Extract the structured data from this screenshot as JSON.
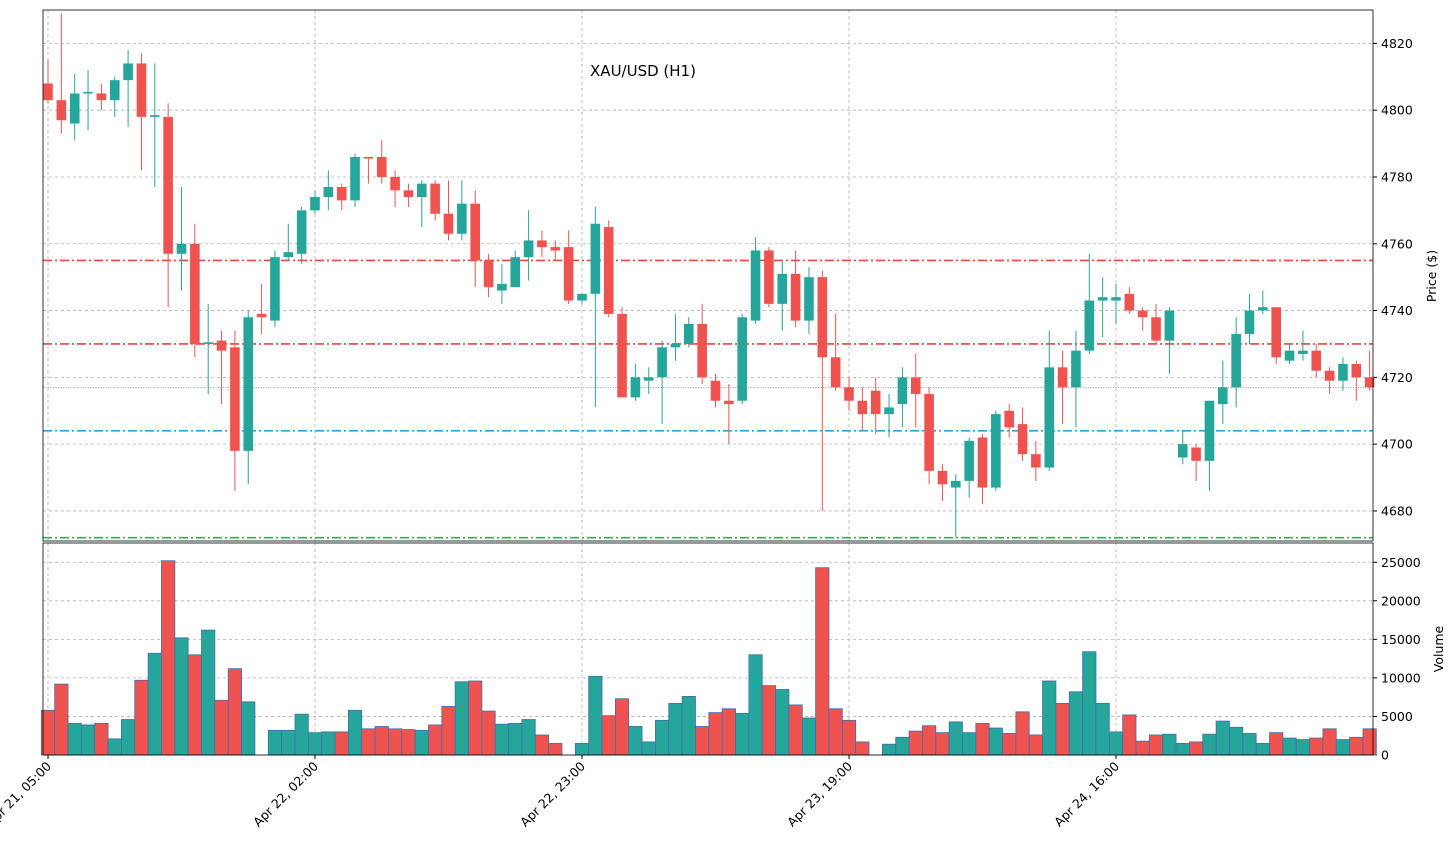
{
  "chart_data": {
    "type": "candlestick",
    "title": "XAU/USD (H1)",
    "ylabel": "Price ($)",
    "categories": [
      "Apr 21, 05:00",
      null,
      null,
      null,
      null,
      null,
      null,
      null,
      null,
      null,
      null,
      null,
      null,
      null,
      null,
      null,
      null,
      null,
      null,
      null,
      "Apr 22, 02:00",
      null,
      null,
      null,
      null,
      null,
      null,
      null,
      null,
      null,
      null,
      null,
      null,
      null,
      null,
      null,
      null,
      null,
      null,
      null,
      "Apr 22, 23:00",
      null,
      null,
      null,
      null,
      null,
      null,
      null,
      null,
      null,
      null,
      null,
      null,
      null,
      null,
      null,
      null,
      null,
      null,
      null,
      "Apr 23, 19:00",
      null,
      null,
      null,
      null,
      null,
      null,
      null,
      null,
      null,
      null,
      null,
      null,
      null,
      null,
      null,
      null,
      null,
      null,
      null,
      "Apr 24, 16:00",
      null,
      null,
      null,
      null,
      null,
      null,
      null,
      null,
      null,
      null,
      null,
      null,
      null,
      null,
      null,
      null,
      null,
      null,
      null
    ],
    "open": [
      4808,
      4803,
      4796,
      4805,
      4805,
      4803,
      4809,
      4814,
      4798,
      4798,
      4757,
      4760,
      4730,
      4731,
      4729,
      4698,
      4739,
      4737,
      4756,
      4757,
      4770,
      4774,
      4777,
      4773,
      4786,
      4786,
      4780,
      4776,
      4774,
      4778,
      4769,
      4763,
      4772,
      4755,
      4746,
      4747,
      4756,
      4761,
      4759,
      4759,
      4743,
      4745,
      4765,
      4739,
      4714,
      4719,
      4720,
      4729,
      4730,
      4736,
      4719,
      4713,
      4713,
      4737,
      4758,
      4742,
      4751,
      4737,
      4750,
      4726,
      4717,
      4713,
      4716,
      4709,
      4712,
      4720,
      4715,
      4692,
      4687,
      4689,
      4702,
      4687,
      4710,
      4706,
      4697,
      4693,
      4723,
      4717,
      4728,
      4743,
      4743,
      4745,
      4740,
      4738,
      4731,
      4696,
      4699,
      4695,
      4712,
      4717,
      4733,
      4740,
      4741,
      4725,
      4727,
      4728,
      4722,
      4719,
      4724,
      4720
    ],
    "high": [
      4815,
      4829,
      4811,
      4812,
      4808,
      4810,
      4818,
      4817,
      4814,
      4802,
      4777,
      4766,
      4742,
      4734,
      4734,
      4740,
      4748,
      4758,
      4766,
      4771,
      4776,
      4782,
      4778,
      4787,
      4786,
      4791,
      4782,
      4778,
      4779,
      4779,
      4779,
      4779,
      4776,
      4757,
      4754,
      4758,
      4770,
      4764,
      4761,
      4764,
      4745,
      4771,
      4767,
      4741,
      4724,
      4723,
      4731,
      4739,
      4738,
      4742,
      4721,
      4718,
      4739,
      4762,
      4759,
      4755,
      4758,
      4753,
      4752,
      4739,
      4720,
      4717,
      4720,
      4715,
      4723,
      4727,
      4717,
      4694,
      4691,
      4702,
      4703,
      4710,
      4712,
      4711,
      4701,
      4734,
      4728,
      4734,
      4757,
      4750,
      4748,
      4747,
      4741,
      4742,
      4741,
      4704,
      4700,
      4713,
      4725,
      4738,
      4745,
      4746,
      4741,
      4730,
      4734,
      4730,
      4723,
      4726,
      4725,
      4728
    ],
    "low": [
      4802,
      4793,
      4791,
      4794,
      4800,
      4798,
      4795,
      4782,
      4777,
      4741,
      4746,
      4726,
      4715,
      4712,
      4686,
      4688,
      4733,
      4735,
      4755,
      4754,
      4769,
      4770,
      4770,
      4771,
      4778,
      4778,
      4771,
      4771,
      4765,
      4767,
      4761,
      4761,
      4747,
      4744,
      4742,
      4748,
      4749,
      4756,
      4755,
      4742,
      4742,
      4711,
      4738,
      4714,
      4713,
      4715,
      4706,
      4725,
      4729,
      4718,
      4711,
      4700,
      4712,
      4736,
      4741,
      4734,
      4735,
      4733,
      4680,
      4716,
      4710,
      4704,
      4703,
      4702,
      4705,
      4705,
      4688,
      4683,
      4672,
      4684,
      4682,
      4686,
      4702,
      4695,
      4689,
      4692,
      4706,
      4705,
      4727,
      4732,
      4736,
      4739,
      4734,
      4730,
      4721,
      4694,
      4689,
      4686,
      4706,
      4711,
      4730,
      4739,
      4724,
      4724,
      4725,
      4720,
      4715,
      4716,
      4713,
      4716
    ],
    "close": [
      4803,
      4797,
      4805,
      4805.5,
      4803,
      4809,
      4814,
      4798,
      4798.5,
      4757,
      4760,
      4730,
      4730.5,
      4728,
      4698,
      4738,
      4738,
      4756,
      4757.5,
      4770,
      4774,
      4777,
      4773,
      4786,
      4785.5,
      4780,
      4776,
      4774,
      4778,
      4769,
      4763,
      4772,
      4755,
      4747,
      4748,
      4756,
      4761,
      4759,
      4758,
      4743,
      4745,
      4766,
      4739,
      4714,
      4720,
      4720,
      4729,
      4730,
      4736,
      4720,
      4713,
      4712,
      4738,
      4758,
      4742,
      4751,
      4737,
      4750,
      4726,
      4717,
      4713,
      4709,
      4709,
      4711,
      4720,
      4715,
      4692,
      4688,
      4689,
      4701,
      4687,
      4709,
      4705,
      4697,
      4693,
      4723,
      4717,
      4728,
      4743,
      4744,
      4744,
      4740,
      4738,
      4731,
      4740,
      4700,
      4695,
      4713,
      4717,
      4733,
      4740,
      4741,
      4726,
      4728,
      4728,
      4722,
      4719,
      4724,
      4720,
      4717
    ],
    "up_color": "#26a69a",
    "down_color": "#ef5350",
    "ylim": [
      4671,
      4830
    ],
    "yticks": [
      4680,
      4700,
      4720,
      4740,
      4760,
      4780,
      4800,
      4820
    ],
    "grid": true,
    "hlines": [
      {
        "value": 4755,
        "color": "#e8453c",
        "style": "dashdot"
      },
      {
        "value": 4730,
        "color": "#e8453c",
        "style": "dashdot"
      },
      {
        "value": 4704,
        "color": "#29a9d8",
        "style": "dashdot"
      },
      {
        "value": 4672,
        "color": "#1db954",
        "style": "dashdot"
      },
      {
        "value": 4717,
        "color": "#888888",
        "style": "dotted"
      }
    ],
    "volume": {
      "ylabel": "Volume",
      "edge_color": "#3d6fb0",
      "ylim": [
        0,
        27500
      ],
      "yticks": [
        0,
        5000,
        10000,
        15000,
        20000,
        25000
      ],
      "values": [
        5800,
        9200,
        4100,
        3900,
        4100,
        2100,
        4600,
        9700,
        13200,
        25200,
        15200,
        13000,
        16200,
        7100,
        11200,
        6900,
        0,
        3200,
        3200,
        5300,
        2900,
        3000,
        3000,
        5800,
        3400,
        3700,
        3400,
        3300,
        3200,
        3900,
        6300,
        9500,
        9600,
        5700,
        4000,
        4100,
        4600,
        2600,
        1500,
        0,
        1500,
        10200,
        5100,
        7300,
        3700,
        1700,
        4500,
        6700,
        7600,
        3700,
        5500,
        6000,
        5400,
        13000,
        9000,
        8500,
        6500,
        4800,
        24300,
        6000,
        4500,
        1700,
        0,
        1400,
        2300,
        3100,
        3800,
        2900,
        4300,
        2900,
        4100,
        3500,
        2800,
        5600,
        2600,
        9600,
        6700,
        8200,
        13400,
        6700,
        3000,
        5200,
        1800,
        2600,
        2700,
        1500,
        1700,
        2700,
        4400,
        3600,
        2800,
        1500,
        2900,
        2200,
        2000,
        2200,
        3400,
        2000,
        2300,
        3400
      ]
    }
  }
}
